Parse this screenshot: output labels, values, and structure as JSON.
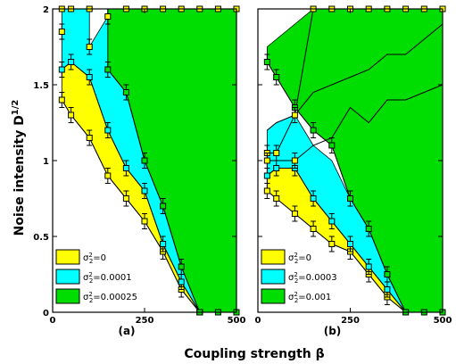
{
  "figure": {
    "xlabel": "Coupling strength β",
    "ylabel": "Noise intensity D",
    "ylabel_sup": "1/2"
  },
  "colors": {
    "yellow": "#ffff00",
    "cyan": "#00ffff",
    "green": "#00dd00",
    "line": "#000000"
  },
  "chart_data": [
    {
      "type": "area",
      "panel_label": "(a)",
      "xlim": [
        0,
        500
      ],
      "ylim": [
        0,
        2
      ],
      "xticks": [
        0,
        250,
        500
      ],
      "yticks": [
        0,
        0.5,
        1,
        1.5,
        2
      ],
      "ytick_labels": [
        "0",
        "0.5",
        "1",
        "1.5",
        "2"
      ],
      "legend_position": "bottom-left",
      "grid": false,
      "series": [
        {
          "name": "σ2²=0",
          "legend_base": "σ",
          "legend_sub": "2",
          "legend_sup": "2",
          "legend_rest": "=0",
          "color": "yellow",
          "points": [
            [
              25,
              1.4
            ],
            [
              50,
              1.3
            ],
            [
              100,
              1.15
            ],
            [
              150,
              0.9
            ],
            [
              200,
              0.75
            ],
            [
              250,
              0.6
            ],
            [
              300,
              0.4
            ],
            [
              350,
              0.15
            ],
            [
              400,
              0.0
            ]
          ],
          "errors": [
            0.05,
            0.05,
            0.05,
            0.05,
            0.05,
            0.05,
            0.05,
            0.05,
            0.0
          ],
          "upper": [
            [
              25,
              1.6
            ],
            [
              50,
              1.65
            ],
            [
              100,
              1.55
            ],
            [
              150,
              1.2
            ],
            [
              200,
              0.95
            ],
            [
              250,
              0.8
            ],
            [
              300,
              0.45
            ],
            [
              350,
              0.2
            ],
            [
              400,
              0.0
            ]
          ]
        },
        {
          "name": "σ2²=0.0001",
          "legend_base": "σ",
          "legend_sub": "2",
          "legend_sup": "2",
          "legend_rest": "=0.0001",
          "color": "cyan",
          "points": [
            [
              25,
              1.6
            ],
            [
              50,
              1.65
            ],
            [
              100,
              1.55
            ],
            [
              150,
              1.2
            ],
            [
              200,
              0.95
            ],
            [
              250,
              0.8
            ],
            [
              300,
              0.45
            ],
            [
              350,
              0.2
            ],
            [
              400,
              0.0
            ]
          ],
          "errors": [
            0.05,
            0.05,
            0.05,
            0.05,
            0.05,
            0.05,
            0.05,
            0.05,
            0.0
          ],
          "upper": [
            [
              25,
              1.85
            ],
            [
              25,
              2.0
            ],
            [
              100,
              2.0
            ],
            [
              100,
              1.75
            ],
            [
              150,
              1.95
            ],
            [
              150,
              1.6
            ],
            [
              200,
              1.45
            ],
            [
              250,
              1.0
            ],
            [
              300,
              0.7
            ],
            [
              350,
              0.3
            ],
            [
              400,
              0.0
            ]
          ]
        },
        {
          "name": "σ2²=0.00025",
          "legend_base": "σ",
          "legend_sub": "2",
          "legend_sup": "2",
          "legend_rest": "=0.00025",
          "color": "green",
          "points": [
            [
              150,
              1.6
            ],
            [
              200,
              1.45
            ],
            [
              250,
              1.0
            ],
            [
              300,
              0.7
            ],
            [
              350,
              0.3
            ],
            [
              400,
              0.0
            ],
            [
              450,
              0.0
            ],
            [
              500,
              0.0
            ]
          ],
          "errors": [
            0.05,
            0.05,
            0.05,
            0.05,
            0.05,
            0.0,
            0.0,
            0.0
          ],
          "upper": [
            [
              150,
              2.0
            ],
            [
              200,
              2.0
            ],
            [
              250,
              2.0
            ],
            [
              300,
              2.0
            ],
            [
              350,
              2.0
            ],
            [
              400,
              2.0
            ],
            [
              450,
              2.0
            ],
            [
              500,
              2.0
            ]
          ]
        }
      ],
      "extra_markers": [
        [
          25,
          2.0
        ],
        [
          50,
          2.0
        ],
        [
          100,
          2.0
        ],
        [
          150,
          1.95
        ],
        [
          200,
          2.0
        ],
        [
          250,
          2.0
        ],
        [
          300,
          2.0
        ],
        [
          350,
          2.0
        ],
        [
          400,
          2.0
        ],
        [
          450,
          2.0
        ],
        [
          500,
          2.0
        ],
        [
          100,
          1.75
        ],
        [
          25,
          1.85
        ]
      ]
    },
    {
      "type": "area",
      "panel_label": "(b)",
      "xlim": [
        0,
        500
      ],
      "ylim": [
        0,
        2
      ],
      "xticks": [
        0,
        250,
        500
      ],
      "yticks": [
        0,
        0.5,
        1,
        1.5,
        2
      ],
      "ytick_labels": [
        "",
        "",
        "",
        "",
        ""
      ],
      "legend_position": "bottom-left",
      "grid": false,
      "series": [
        {
          "name": "σ2²=0",
          "legend_base": "σ",
          "legend_sub": "2",
          "legend_sup": "2",
          "legend_rest": "=0",
          "color": "yellow",
          "points": [
            [
              25,
              0.8
            ],
            [
              50,
              0.75
            ],
            [
              100,
              0.65
            ],
            [
              150,
              0.55
            ],
            [
              200,
              0.45
            ],
            [
              250,
              0.4
            ],
            [
              300,
              0.25
            ],
            [
              350,
              0.1
            ],
            [
              400,
              0.0
            ]
          ],
          "errors": [
            0.05,
            0.05,
            0.05,
            0.05,
            0.05,
            0.05,
            0.05,
            0.05,
            0.0
          ],
          "upper": [
            [
              25,
              0.9
            ],
            [
              50,
              0.95
            ],
            [
              100,
              0.95
            ],
            [
              150,
              0.75
            ],
            [
              200,
              0.6
            ],
            [
              250,
              0.45
            ],
            [
              300,
              0.3
            ],
            [
              350,
              0.15
            ],
            [
              400,
              0.0
            ]
          ]
        },
        {
          "name": "σ2²=0.0003",
          "legend_base": "σ",
          "legend_sub": "2",
          "legend_sup": "2",
          "legend_rest": "=0.0003",
          "color": "cyan",
          "points": [
            [
              25,
              0.9
            ],
            [
              50,
              0.95
            ],
            [
              100,
              0.95
            ],
            [
              150,
              0.75
            ],
            [
              200,
              0.6
            ],
            [
              250,
              0.45
            ],
            [
              300,
              0.3
            ],
            [
              350,
              0.15
            ],
            [
              400,
              0.0
            ]
          ],
          "errors": [
            0.05,
            0.05,
            0.05,
            0.05,
            0.05,
            0.05,
            0.05,
            0.05,
            0.0
          ],
          "upper": [
            [
              25,
              1.2
            ],
            [
              50,
              1.25
            ],
            [
              100,
              1.3
            ],
            [
              150,
              1.1
            ],
            [
              200,
              1.0
            ],
            [
              250,
              0.75
            ],
            [
              300,
              0.55
            ],
            [
              350,
              0.25
            ],
            [
              400,
              0.0
            ]
          ]
        },
        {
          "name": "σ2²=0.001",
          "legend_base": "σ",
          "legend_sub": "2",
          "legend_sup": "2",
          "legend_rest": "=0.001",
          "color": "green",
          "points": [
            [
              25,
              1.65
            ],
            [
              50,
              1.55
            ],
            [
              100,
              1.35
            ],
            [
              150,
              1.2
            ],
            [
              200,
              1.1
            ],
            [
              250,
              0.75
            ],
            [
              300,
              0.55
            ],
            [
              350,
              0.25
            ],
            [
              400,
              0.0
            ],
            [
              450,
              0.0
            ],
            [
              500,
              0.0
            ]
          ],
          "errors": [
            0.05,
            0.05,
            0.05,
            0.05,
            0.05,
            0.05,
            0.05,
            0.05,
            0.0,
            0.0,
            0.0
          ],
          "upper": [
            [
              25,
              1.75
            ],
            [
              50,
              1.8
            ],
            [
              100,
              1.9
            ],
            [
              150,
              2.0
            ],
            [
              500,
              2.0
            ]
          ]
        }
      ],
      "extra_lines": [
        {
          "points": [
            [
              25,
              1.2
            ],
            [
              50,
              1.25
            ],
            [
              100,
              1.3
            ],
            [
              150,
              1.45
            ],
            [
              200,
              1.5
            ],
            [
              250,
              1.55
            ],
            [
              300,
              1.6
            ],
            [
              350,
              1.7
            ],
            [
              400,
              1.7
            ],
            [
              450,
              1.8
            ],
            [
              500,
              1.9
            ]
          ]
        },
        {
          "points": [
            [
              25,
              1.0
            ],
            [
              100,
              1.0
            ],
            [
              150,
              1.1
            ],
            [
              200,
              1.15
            ],
            [
              250,
              1.35
            ],
            [
              300,
              1.25
            ],
            [
              350,
              1.4
            ],
            [
              400,
              1.4
            ],
            [
              450,
              1.45
            ],
            [
              500,
              1.5
            ]
          ]
        },
        {
          "points": [
            [
              25,
              1.05
            ],
            [
              50,
              1.05
            ],
            [
              100,
              1.3
            ],
            [
              150,
              2.0
            ]
          ]
        }
      ],
      "extra_markers": [
        [
          150,
          2.0
        ],
        [
          200,
          2.0
        ],
        [
          250,
          2.0
        ],
        [
          300,
          2.0
        ],
        [
          350,
          2.0
        ],
        [
          400,
          2.0
        ],
        [
          450,
          2.0
        ],
        [
          500,
          2.0
        ],
        [
          25,
          1.05
        ],
        [
          50,
          1.05
        ],
        [
          100,
          1.3
        ],
        [
          25,
          1.0
        ],
        [
          100,
          1.0
        ]
      ]
    }
  ]
}
